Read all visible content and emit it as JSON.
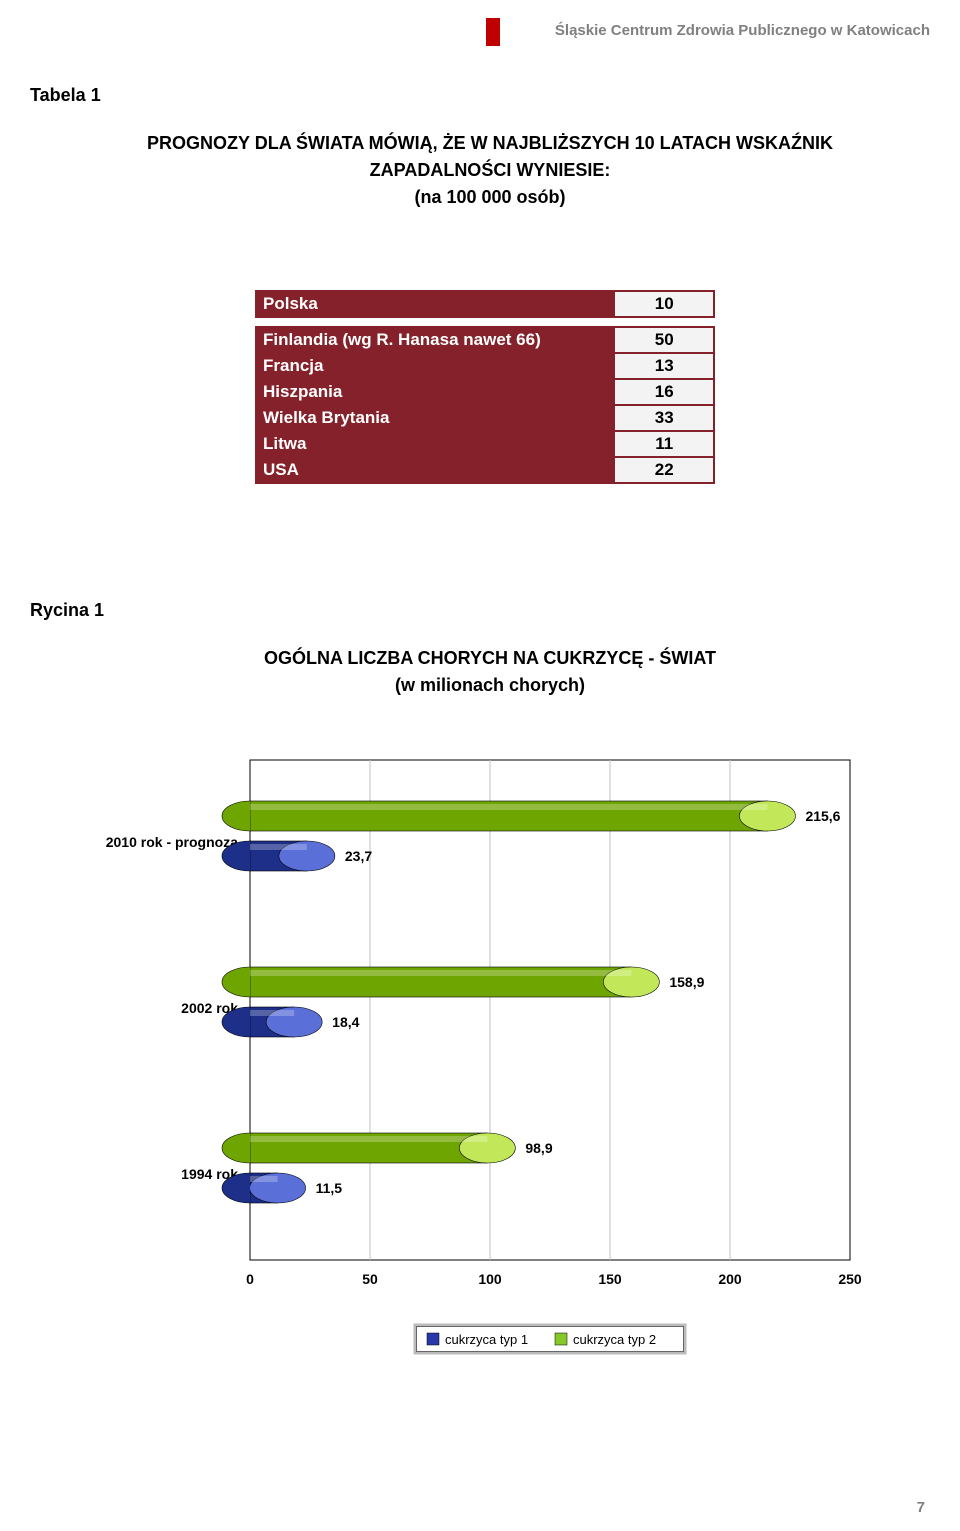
{
  "header": {
    "text": "Śląskie Centrum Zdrowia Publicznego w Katowicach",
    "marker_color": "#c00000",
    "text_color": "#808080"
  },
  "page_number": "7",
  "tabela": {
    "label": "Tabela 1",
    "title_line1": "PROGNOZY DLA ŚWIATA MÓWIĄ, ŻE W NAJBLIŻSZYCH 10 LATACH WSKAŹNIK",
    "title_line2": "ZAPADALNOŚCI WYNIESIE:",
    "title_line3": "(na 100 000 osób)",
    "header_bg": "#85212a",
    "header_fg": "#ffffff",
    "value_bg": "#f3f3f3",
    "border": "#85212a",
    "rows_top": [
      {
        "name": "Polska",
        "value": "10"
      }
    ],
    "rows_bottom": [
      {
        "name": "Finlandia  (wg R. Hanasa nawet 66)",
        "value": "50"
      },
      {
        "name": "Francja",
        "value": "13"
      },
      {
        "name": "Hiszpania",
        "value": "16"
      },
      {
        "name": "Wielka Brytania",
        "value": "33"
      },
      {
        "name": "Litwa",
        "value": "11"
      },
      {
        "name": "USA",
        "value": "22"
      }
    ]
  },
  "rycina": {
    "label": "Rycina 1",
    "title_line1": "OGÓLNA LICZBA CHORYCH NA CUKRZYCĘ - ŚWIAT",
    "title_line2": "(w milionach chorych)"
  },
  "chart": {
    "type": "horizontal_3d_cylinder_bar",
    "background_color": "#ffffff",
    "axis_color": "#000000",
    "grid_color": "#c0c0c0",
    "label_fontsize": 14,
    "tick_fontsize": 14,
    "xlim": [
      0,
      250
    ],
    "xtick_step": 50,
    "xticks": [
      "0",
      "50",
      "100",
      "150",
      "200",
      "250"
    ],
    "categories": [
      "2010 rok - prognoza",
      "2002 rok",
      "1994 rok"
    ],
    "series": [
      {
        "name": "cukrzyca typ 1",
        "color_top": "#5a6fd8",
        "color_body": "#1e2f8a",
        "swatch": "#2838a8"
      },
      {
        "name": "cukrzyca typ 2",
        "color_top": "#c2e85a",
        "color_body": "#6fa500",
        "swatch": "#86c828"
      }
    ],
    "data": {
      "typ1": [
        23.7,
        18.4,
        11.5
      ],
      "typ2": [
        215.6,
        158.9,
        98.9
      ]
    },
    "labels_typ1": [
      "23,7",
      "18,4",
      "11,5"
    ],
    "labels_typ2": [
      "215,6",
      "158,9",
      "98,9"
    ],
    "legend": [
      "cukrzyca typ 1",
      "cukrzyca typ 2"
    ]
  }
}
